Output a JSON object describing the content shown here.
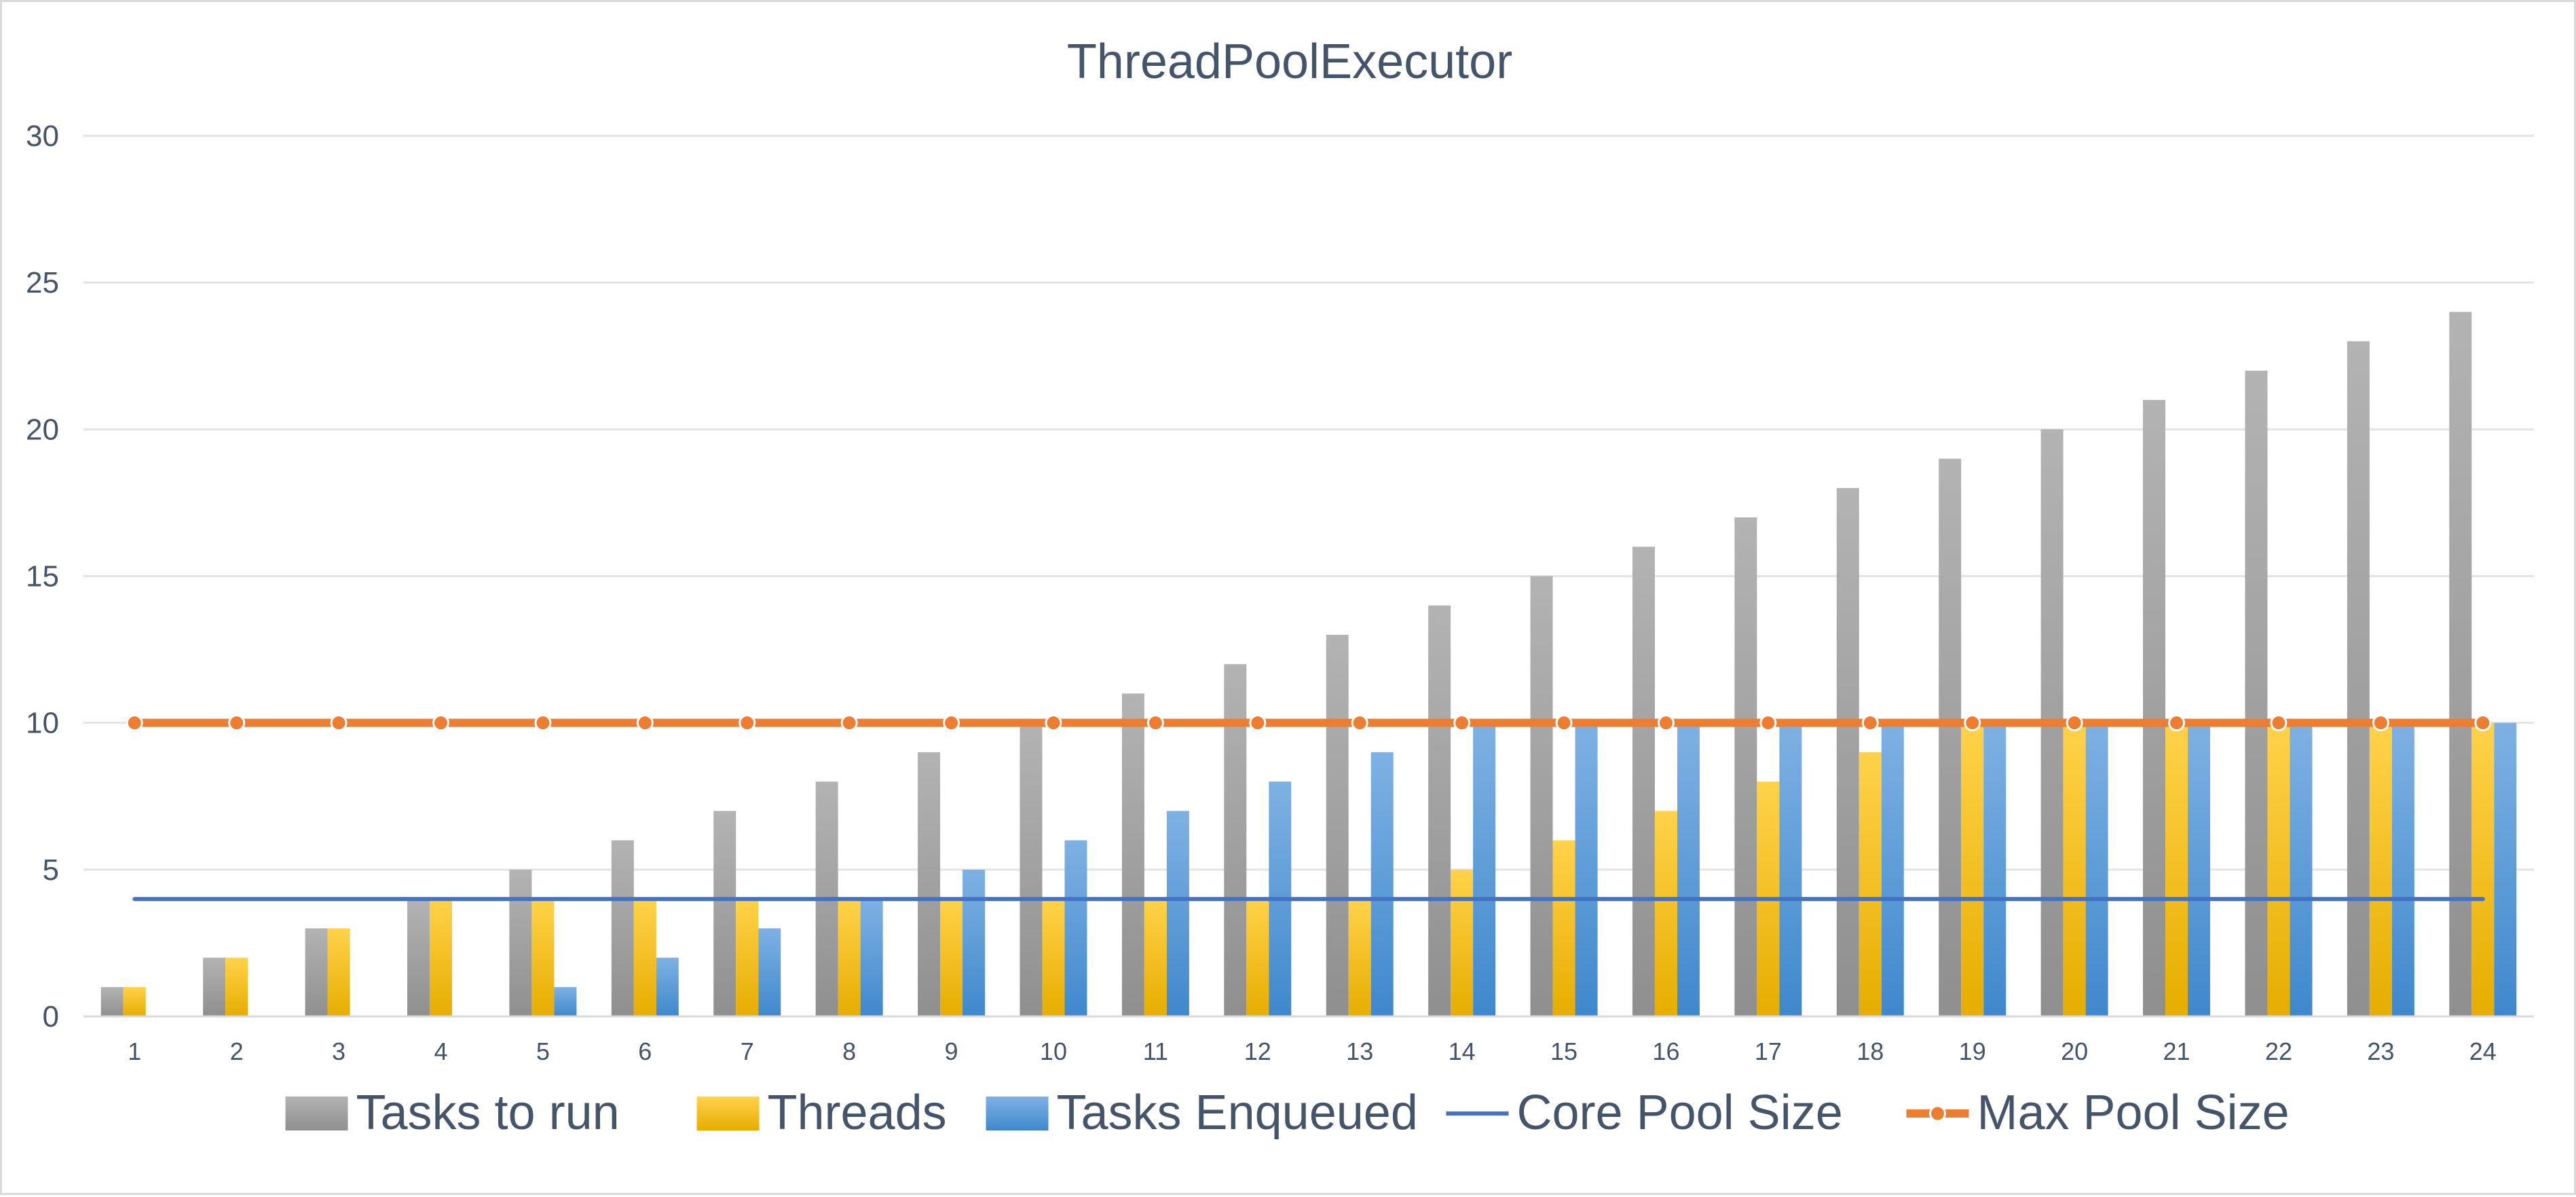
{
  "chart_data": {
    "type": "bar",
    "title": "ThreadPoolExecutor",
    "xlabel": "",
    "ylabel": "",
    "ylim": [
      0,
      30
    ],
    "yticks": [
      0,
      5,
      10,
      15,
      20,
      25,
      30
    ],
    "grid": true,
    "legend_position": "bottom",
    "categories": [
      "1",
      "2",
      "3",
      "4",
      "5",
      "6",
      "7",
      "8",
      "9",
      "10",
      "11",
      "12",
      "13",
      "14",
      "15",
      "16",
      "17",
      "18",
      "19",
      "20",
      "21",
      "22",
      "23",
      "24"
    ],
    "series": [
      {
        "name": "Tasks to run",
        "kind": "bar",
        "color": "#a5a5a5",
        "values": [
          1,
          2,
          3,
          4,
          5,
          6,
          7,
          8,
          9,
          10,
          11,
          12,
          13,
          14,
          15,
          16,
          17,
          18,
          19,
          20,
          21,
          22,
          23,
          24
        ]
      },
      {
        "name": "Threads",
        "kind": "bar",
        "color": "#ffc000",
        "values": [
          1,
          2,
          3,
          4,
          4,
          4,
          4,
          4,
          4,
          4,
          4,
          4,
          4,
          5,
          6,
          7,
          8,
          9,
          10,
          10,
          10,
          10,
          10,
          10
        ]
      },
      {
        "name": "Tasks Enqueued",
        "kind": "bar",
        "color": "#5b9bd5",
        "values": [
          0,
          0,
          0,
          0,
          1,
          2,
          3,
          4,
          5,
          6,
          7,
          8,
          9,
          10,
          10,
          10,
          10,
          10,
          10,
          10,
          10,
          10,
          10,
          10
        ]
      },
      {
        "name": "Core Pool Size",
        "kind": "line",
        "color": "#4472c4",
        "values": [
          4,
          4,
          4,
          4,
          4,
          4,
          4,
          4,
          4,
          4,
          4,
          4,
          4,
          4,
          4,
          4,
          4,
          4,
          4,
          4,
          4,
          4,
          4,
          4
        ]
      },
      {
        "name": "Max Pool Size",
        "kind": "line-marker",
        "color": "#ed7d31",
        "values": [
          10,
          10,
          10,
          10,
          10,
          10,
          10,
          10,
          10,
          10,
          10,
          10,
          10,
          10,
          10,
          10,
          10,
          10,
          10,
          10,
          10,
          10,
          10,
          10
        ]
      }
    ]
  }
}
